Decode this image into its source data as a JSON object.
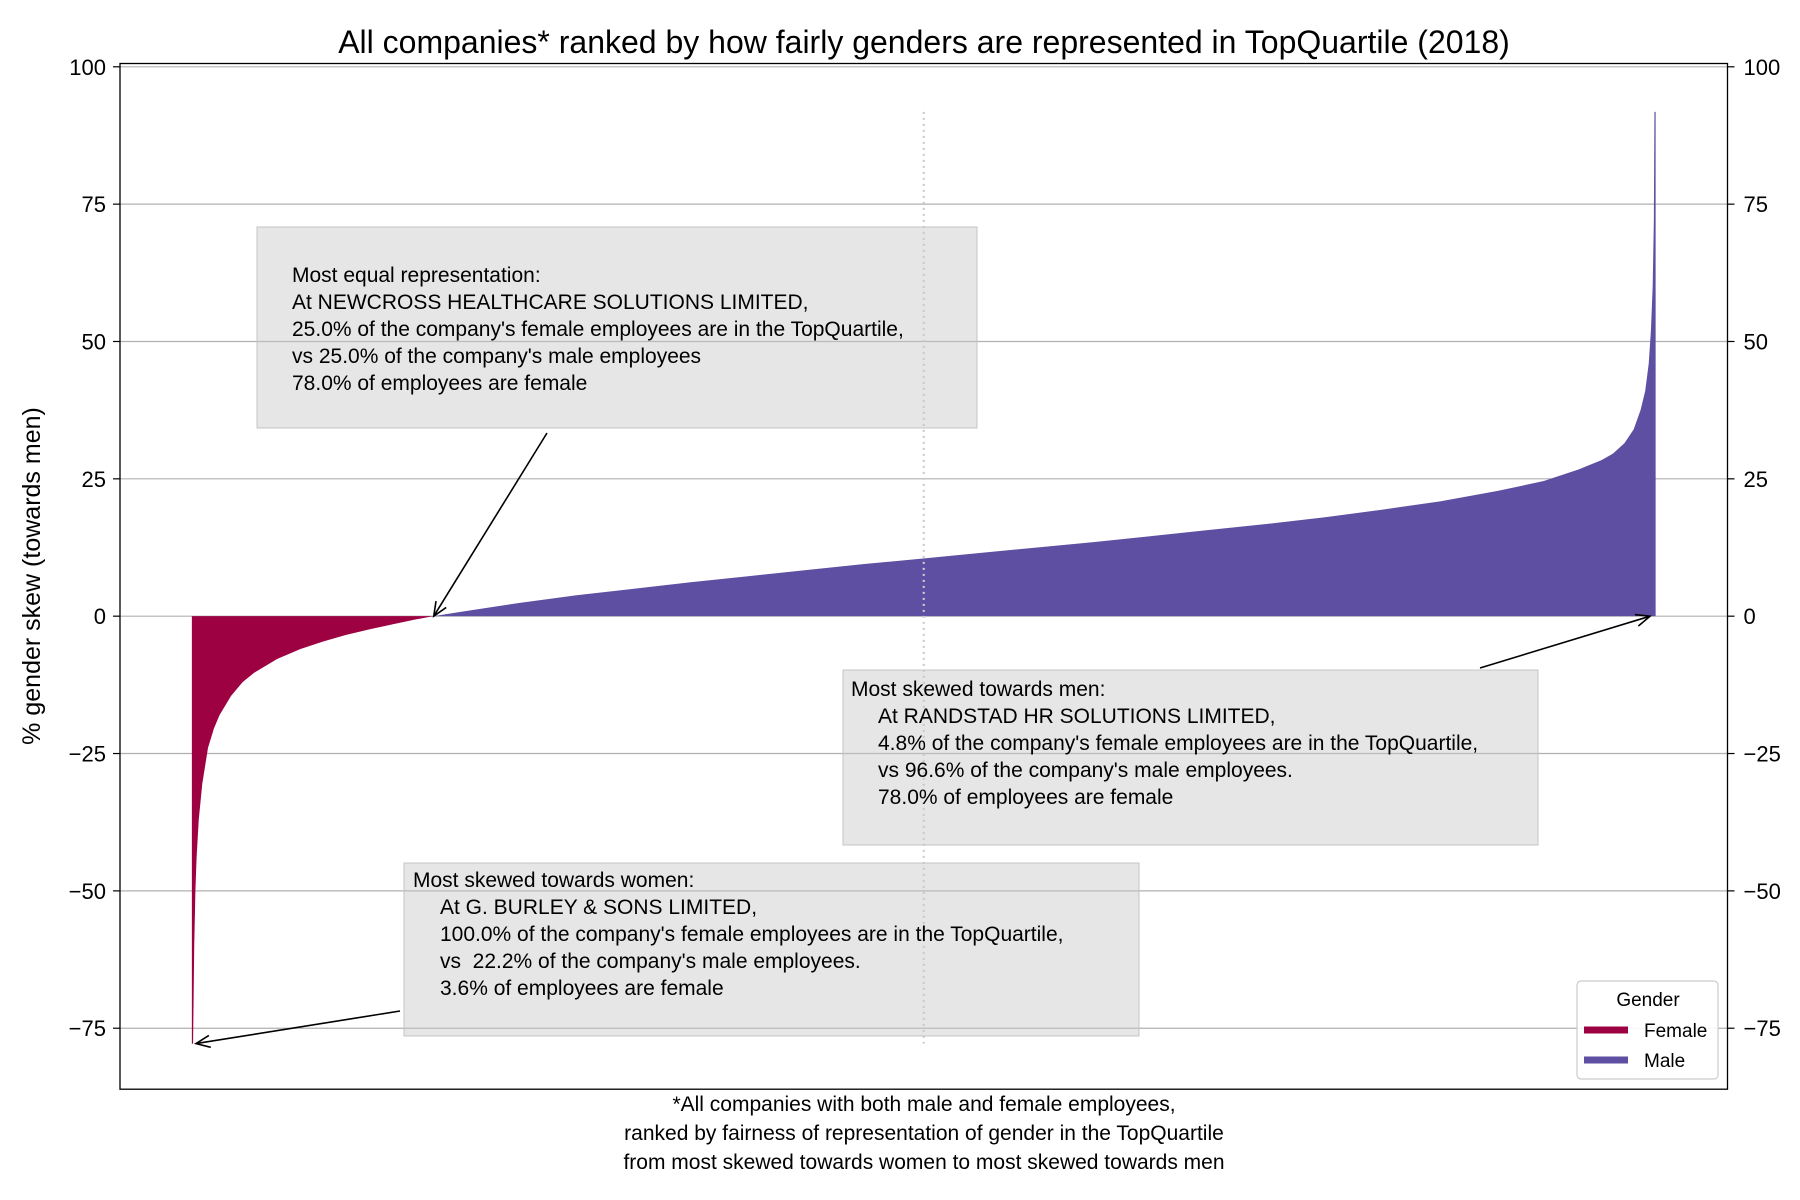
{
  "chart_data": {
    "type": "area",
    "title": "All companies* ranked by how fairly genders are represented in TopQuartile (2018)",
    "xlabel": [
      "*All companies with both male and female employees,",
      "ranked by fairness of representation of gender in the TopQuartile",
      "from most skewed towards women to most skewed towards men"
    ],
    "ylabel": "% gender skew (towards men)",
    "ylim": [
      -86.1,
      100.6
    ],
    "yticks": [
      100,
      75,
      50,
      25,
      0,
      -25,
      -50,
      -75
    ],
    "ytick_labels": [
      "100",
      "75",
      "50",
      "25",
      "0",
      "−25",
      "−50",
      "−75"
    ],
    "yaxis_mirrored": true,
    "grid": "horizontal",
    "series": [
      {
        "name": "Female",
        "color": "#9e0142",
        "rank_percentile": [
          0,
          0.08,
          0.16,
          0.24,
          0.39,
          0.63,
          1.02,
          1.42,
          1.81,
          2.6,
          3.39,
          4.18,
          5.75,
          7.33,
          8.9,
          10.48,
          12.06,
          13.63,
          15.21,
          16.47
        ],
        "values": [
          -77.8,
          -60,
          -50,
          -44,
          -37,
          -30.5,
          -24,
          -20.5,
          -18,
          -14.5,
          -12,
          -10.3,
          -7.8,
          -6.0,
          -4.6,
          -3.4,
          -2.4,
          -1.5,
          -0.6,
          0
        ]
      },
      {
        "name": "Male",
        "color": "#5e4fa2",
        "rank_percentile": [
          16.47,
          18.36,
          22.3,
          26.24,
          30.18,
          34.12,
          38.06,
          42.0,
          45.94,
          49.96,
          53.82,
          57.76,
          61.7,
          65.64,
          69.58,
          73.52,
          77.46,
          81.4,
          85.34,
          89.28,
          92.43,
          94.8,
          96.38,
          97.16,
          97.95,
          98.58,
          99.05,
          99.37,
          99.61,
          99.76,
          99.88,
          99.96,
          100
        ],
        "values": [
          0,
          0.8,
          2.4,
          3.8,
          5.0,
          6.2,
          7.3,
          8.4,
          9.5,
          10.5,
          11.5,
          12.5,
          13.5,
          14.6,
          15.7,
          16.8,
          18.0,
          19.4,
          20.9,
          22.8,
          24.6,
          26.7,
          28.4,
          29.6,
          31.5,
          34.0,
          37.5,
          41.0,
          46.0,
          52.0,
          60.0,
          72.0,
          91.8
        ]
      }
    ],
    "reference_line": {
      "rank_percentile": 50,
      "style": "dotted",
      "color": "#cccccc"
    },
    "legend": {
      "title": "Gender",
      "position": "lower-right"
    },
    "annotations": [
      {
        "heading": "Most equal representation:",
        "lines": [
          "At NEWCROSS HEALTHCARE SOLUTIONS LIMITED,",
          "25.0% of the company's female employees are in the TopQuartile,",
          "vs 25.0% of the company's male employees",
          "78.0% of employees are female"
        ],
        "target": {
          "rank_percentile": 16.47,
          "value": 0
        }
      },
      {
        "heading": "Most skewed towards men:",
        "lines": [
          "At RANDSTAD HR SOLUTIONS LIMITED,",
          "4.8% of the company's female employees are in the TopQuartile,",
          "vs 96.6% of the company's male employees.",
          "78.0% of employees are female"
        ],
        "target": {
          "rank_percentile": 99.7,
          "value": 0
        }
      },
      {
        "heading": "Most skewed towards women:",
        "lines": [
          "At G. BURLEY & SONS LIMITED,",
          "100.0% of the company's female employees are in the TopQuartile,",
          "vs  22.2% of the company's male employees.",
          "3.6% of employees are female"
        ],
        "target": {
          "rank_percentile": 0.2,
          "value": -77.8
        }
      }
    ]
  }
}
